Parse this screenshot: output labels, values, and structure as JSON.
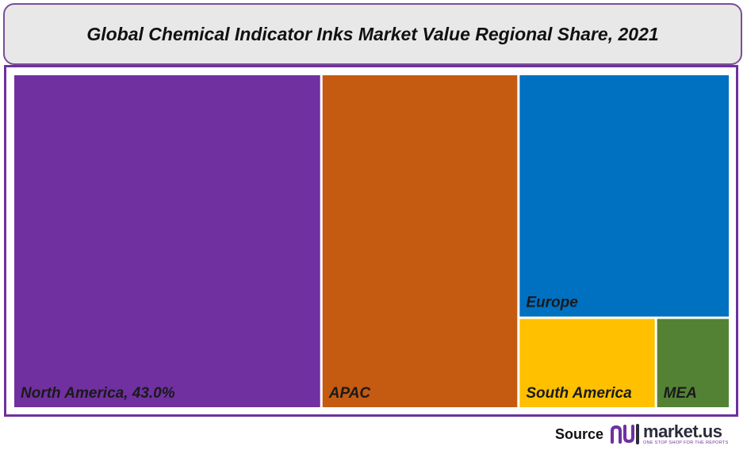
{
  "header": {
    "title": "Global Chemical Indicator Inks Market Value Regional Share, 2021"
  },
  "chart_data": {
    "type": "treemap",
    "title": "Global Chemical Indicator Inks Market Value Regional Share, 2021",
    "series": [
      {
        "name": "North America",
        "label": "North America, 43.0%",
        "value": 43.0,
        "color": "#7030a0"
      },
      {
        "name": "APAC",
        "label": "APAC",
        "value": 27.5,
        "color": "#c55a11"
      },
      {
        "name": "Europe",
        "label": "Europe",
        "value": 21.5,
        "color": "#0070c0"
      },
      {
        "name": "South America",
        "label": "South America",
        "value": 5.2,
        "color": "#ffc000"
      },
      {
        "name": "MEA",
        "label": "MEA",
        "value": 2.8,
        "color": "#548235"
      }
    ],
    "unit": "%"
  },
  "footer": {
    "source_label": "Source",
    "logo_name": "market.us",
    "logo_tagline": "ONE STOP SHOP FOR THE REPORTS"
  },
  "colors": {
    "frame": "#7030a0",
    "title_bg": "#e8e8e8"
  }
}
